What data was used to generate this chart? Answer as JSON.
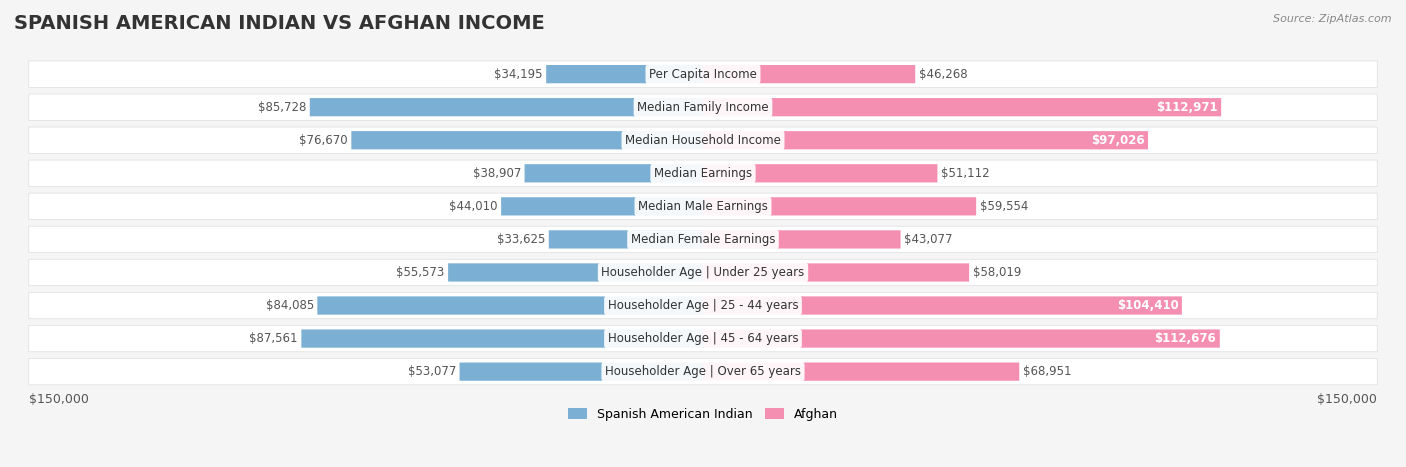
{
  "title": "SPANISH AMERICAN INDIAN VS AFGHAN INCOME",
  "source": "Source: ZipAtlas.com",
  "categories": [
    "Per Capita Income",
    "Median Family Income",
    "Median Household Income",
    "Median Earnings",
    "Median Male Earnings",
    "Median Female Earnings",
    "Householder Age | Under 25 years",
    "Householder Age | 25 - 44 years",
    "Householder Age | 45 - 64 years",
    "Householder Age | Over 65 years"
  ],
  "spanish_values": [
    34195,
    85728,
    76670,
    38907,
    44010,
    33625,
    55573,
    84085,
    87561,
    53077
  ],
  "afghan_values": [
    46268,
    112971,
    97026,
    51112,
    59554,
    43077,
    58019,
    104410,
    112676,
    68951
  ],
  "spanish_labels": [
    "$34,195",
    "$85,728",
    "$76,670",
    "$38,907",
    "$44,010",
    "$33,625",
    "$55,573",
    "$84,085",
    "$87,561",
    "$53,077"
  ],
  "afghan_labels": [
    "$46,268",
    "$112,971",
    "$97,026",
    "$51,112",
    "$59,554",
    "$43,077",
    "$58,019",
    "$104,410",
    "$112,676",
    "$68,951"
  ],
  "spanish_color": "#7bafd4",
  "afghan_color": "#f48fb1",
  "spanish_color_strong": "#5b9ec9",
  "afghan_color_strong": "#e91e8c",
  "max_value": 150000,
  "x_label_left": "$150,000",
  "x_label_right": "$150,000",
  "legend_spanish": "Spanish American Indian",
  "legend_afghan": "Afghan",
  "bg_color": "#f5f5f5",
  "row_bg": "#ffffff",
  "title_fontsize": 14,
  "label_fontsize": 8.5
}
